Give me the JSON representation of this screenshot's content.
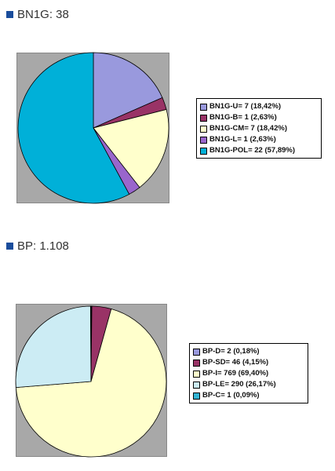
{
  "accent_color": "#1a4d9c",
  "sections": [
    {
      "title": "BN1G: 38"
    },
    {
      "title": "BP: 1.108"
    }
  ],
  "chart_data": [
    {
      "type": "pie",
      "title": "BN1G: 38",
      "legend_position": "right",
      "slices": [
        {
          "label": "BN1G-U= 7 (18,42%)",
          "value": 7,
          "color": "#9999dd"
        },
        {
          "label": "BN1G-B= 1 (2,63%)",
          "value": 1,
          "color": "#993366"
        },
        {
          "label": "BN1G-CM= 7 (18,42%)",
          "value": 7,
          "color": "#ffffcc"
        },
        {
          "label": "BN1G-L= 1 (2,63%)",
          "value": 1,
          "color": "#9966cc"
        },
        {
          "label": "BN1G-POL= 22 (57,89%)",
          "value": 22,
          "color": "#00b0d8"
        }
      ]
    },
    {
      "type": "pie",
      "title": "BP: 1.108",
      "legend_position": "right",
      "slices": [
        {
          "label": "BP-D= 2 (0,18%)",
          "value": 2,
          "color": "#9999dd"
        },
        {
          "label": "BP-SD= 46 (4,15%)",
          "value": 46,
          "color": "#993366"
        },
        {
          "label": "BP-I= 769 (69,40%)",
          "value": 769,
          "color": "#ffffcc"
        },
        {
          "label": "BP-LE= 290 (26,17%)",
          "value": 290,
          "color": "#ccecf4"
        },
        {
          "label": "BP-C= 1 (0,09%)",
          "value": 1,
          "color": "#33b5d5"
        }
      ]
    }
  ]
}
